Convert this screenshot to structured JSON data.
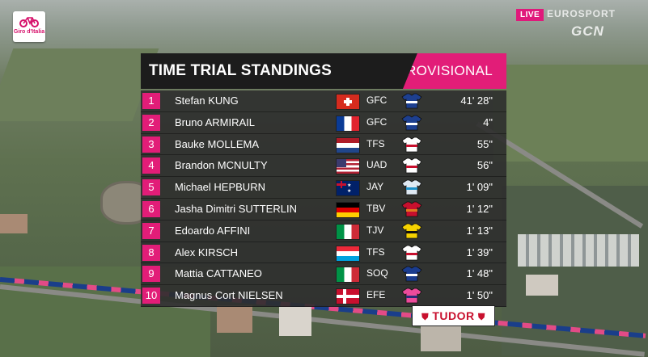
{
  "brand": {
    "logo_text": "Giro d'Italia"
  },
  "broadcast": {
    "live_label": "LIVE",
    "network_label": "EUROSPORT",
    "gcn_label": "GCN"
  },
  "standings": {
    "title": "TIME TRIAL STANDINGS",
    "status": "PROVISIONAL",
    "rows": [
      {
        "pos": "1",
        "name": "Stefan KUNG",
        "flag": "switzerland-flag",
        "flag_class": "sui",
        "team": "GFC",
        "jersey": "groupama-fdj-jersey",
        "time": "41' 28\""
      },
      {
        "pos": "2",
        "name": "Bruno ARMIRAIL",
        "flag": "france-flag",
        "flag_class": "fra",
        "team": "GFC",
        "jersey": "groupama-fdj-jersey",
        "time": "4\""
      },
      {
        "pos": "3",
        "name": "Bauke MOLLEMA",
        "flag": "netherlands-flag",
        "flag_class": "ned",
        "team": "TFS",
        "jersey": "trek-segafredo-jersey",
        "time": "55\""
      },
      {
        "pos": "4",
        "name": "Brandon MCNULTY",
        "flag": "usa-flag",
        "flag_class": "usa",
        "team": "UAD",
        "jersey": "uae-emirates-jersey",
        "time": "56\""
      },
      {
        "pos": "5",
        "name": "Michael HEPBURN",
        "flag": "australia-flag",
        "flag_class": "aus",
        "team": "JAY",
        "jersey": "jayco-alula-jersey",
        "time": "1' 09\""
      },
      {
        "pos": "6",
        "name": "Jasha Dimitri SUTTERLIN",
        "flag": "germany-flag",
        "flag_class": "ger",
        "team": "TBV",
        "jersey": "bahrain-victorious-jersey",
        "time": "1' 12\""
      },
      {
        "pos": "7",
        "name": "Edoardo AFFINI",
        "flag": "italy-flag",
        "flag_class": "ita",
        "team": "TJV",
        "jersey": "jumbo-visma-jersey",
        "time": "1' 13\""
      },
      {
        "pos": "8",
        "name": "Alex KIRSCH",
        "flag": "luxembourg-flag",
        "flag_class": "lux",
        "team": "TFS",
        "jersey": "trek-segafredo-jersey",
        "time": "1' 39\""
      },
      {
        "pos": "9",
        "name": "Mattia CATTANEO",
        "flag": "italy-flag",
        "flag_class": "ita",
        "team": "SOQ",
        "jersey": "soudal-quickstep-jersey",
        "time": "1' 48\""
      },
      {
        "pos": "10",
        "name": "Magnus Cort NIELSEN",
        "flag": "denmark-flag",
        "flag_class": "den",
        "team": "EFE",
        "jersey": "ef-education-jersey",
        "time": "1' 50\""
      }
    ]
  },
  "sponsor": {
    "label": "TUDOR"
  },
  "colors": {
    "accent": "#e21d78",
    "panel": "#1c1c1c",
    "row": "#2d2d2d"
  },
  "jersey_colors": {
    "groupama-fdj-jersey": [
      "#1d3f8f",
      "#ffffff"
    ],
    "trek-segafredo-jersey": [
      "#ffffff",
      "#c8102e"
    ],
    "uae-emirates-jersey": [
      "#ffffff",
      "#c8102e"
    ],
    "jayco-alula-jersey": [
      "#dfe9f3",
      "#1e90c8"
    ],
    "bahrain-victorious-jersey": [
      "#c8102e",
      "#e07a1f"
    ],
    "jumbo-visma-jersey": [
      "#f5d200",
      "#111111"
    ],
    "soudal-quickstep-jersey": [
      "#1a3c8e",
      "#ffffff"
    ],
    "ef-education-jersey": [
      "#ec4b9b",
      "#2b2b7a"
    ]
  }
}
